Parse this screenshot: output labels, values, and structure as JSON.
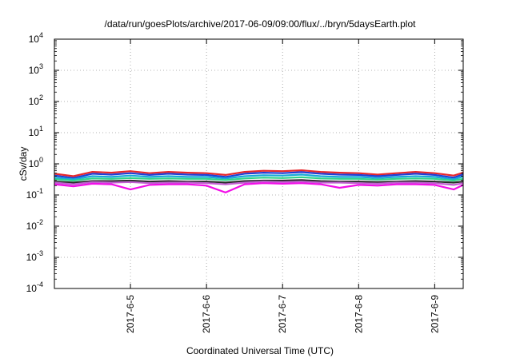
{
  "chart_data": {
    "type": "line",
    "title": "/data/run/goesPlots/archive/2017-06-09/09:00/flux/../bryn/5daysEarth.plot",
    "xlabel": "Coordinated Universal Time (UTC)",
    "ylabel": "cSv/day",
    "yscale": "log",
    "ylim": [
      0.0001,
      10000
    ],
    "xlim": [
      "2017-06-04 00:00",
      "2017-06-09 09:00"
    ],
    "grid": true,
    "legend": "none",
    "y_ticks": [
      {
        "base": "10",
        "exp": "-4",
        "value": 0.0001
      },
      {
        "base": "10",
        "exp": "-3",
        "value": 0.001
      },
      {
        "base": "10",
        "exp": "-2",
        "value": 0.01
      },
      {
        "base": "10",
        "exp": "-1",
        "value": 0.1
      },
      {
        "base": "10",
        "exp": "0",
        "value": 1
      },
      {
        "base": "10",
        "exp": "1",
        "value": 10
      },
      {
        "base": "10",
        "exp": "2",
        "value": 100
      },
      {
        "base": "10",
        "exp": "3",
        "value": 1000
      },
      {
        "base": "10",
        "exp": "4",
        "value": 10000
      }
    ],
    "x_ticks": [
      {
        "label": "2017-6-5",
        "value": "2017-06-05 00:00"
      },
      {
        "label": "2017-6-6",
        "value": "2017-06-06 00:00"
      },
      {
        "label": "2017-6-7",
        "value": "2017-06-07 00:00"
      },
      {
        "label": "2017-6-8",
        "value": "2017-06-08 00:00"
      },
      {
        "label": "2017-6-9",
        "value": "2017-06-09 00:00"
      }
    ],
    "x": [
      "2017-06-04 00:00",
      "2017-06-04 06:00",
      "2017-06-04 12:00",
      "2017-06-04 18:00",
      "2017-06-05 00:00",
      "2017-06-05 06:00",
      "2017-06-05 12:00",
      "2017-06-05 18:00",
      "2017-06-06 00:00",
      "2017-06-06 06:00",
      "2017-06-06 12:00",
      "2017-06-06 18:00",
      "2017-06-07 00:00",
      "2017-06-07 06:00",
      "2017-06-07 12:00",
      "2017-06-07 18:00",
      "2017-06-08 00:00",
      "2017-06-08 06:00",
      "2017-06-08 12:00",
      "2017-06-08 18:00",
      "2017-06-09 00:00",
      "2017-06-09 06:00",
      "2017-06-09 09:00"
    ],
    "series": [
      {
        "color": "#e8262a",
        "values": [
          0.48,
          0.4,
          0.55,
          0.52,
          0.58,
          0.5,
          0.55,
          0.52,
          0.5,
          0.44,
          0.55,
          0.6,
          0.58,
          0.62,
          0.55,
          0.52,
          0.5,
          0.45,
          0.5,
          0.55,
          0.5,
          0.42,
          0.52
        ]
      },
      {
        "color": "#1f3fd6",
        "values": [
          0.42,
          0.35,
          0.48,
          0.45,
          0.5,
          0.44,
          0.48,
          0.45,
          0.44,
          0.38,
          0.48,
          0.52,
          0.5,
          0.54,
          0.48,
          0.45,
          0.44,
          0.4,
          0.44,
          0.48,
          0.44,
          0.36,
          0.46
        ]
      },
      {
        "color": "#18a9d8",
        "values": [
          0.36,
          0.32,
          0.4,
          0.38,
          0.42,
          0.38,
          0.4,
          0.38,
          0.38,
          0.34,
          0.4,
          0.43,
          0.42,
          0.45,
          0.4,
          0.38,
          0.38,
          0.35,
          0.38,
          0.4,
          0.38,
          0.32,
          0.39
        ]
      },
      {
        "color": "#2fd38a",
        "values": [
          0.32,
          0.29,
          0.34,
          0.33,
          0.35,
          0.33,
          0.34,
          0.33,
          0.33,
          0.3,
          0.34,
          0.36,
          0.35,
          0.37,
          0.34,
          0.33,
          0.33,
          0.31,
          0.33,
          0.34,
          0.33,
          0.29,
          0.33
        ]
      },
      {
        "color": "#2a2a2a",
        "values": [
          0.27,
          0.25,
          0.28,
          0.28,
          0.29,
          0.27,
          0.28,
          0.27,
          0.27,
          0.25,
          0.28,
          0.29,
          0.29,
          0.3,
          0.28,
          0.27,
          0.27,
          0.26,
          0.27,
          0.28,
          0.27,
          0.25,
          0.27
        ]
      },
      {
        "color": "#c060d0",
        "values": [
          0.25,
          0.22,
          0.26,
          0.25,
          0.26,
          0.24,
          0.25,
          0.25,
          0.24,
          0.22,
          0.25,
          0.27,
          0.26,
          0.27,
          0.25,
          0.25,
          0.24,
          0.23,
          0.25,
          0.25,
          0.24,
          0.21,
          0.24
        ]
      },
      {
        "color": "#f20ee8",
        "values": [
          0.22,
          0.19,
          0.23,
          0.22,
          0.15,
          0.21,
          0.22,
          0.22,
          0.2,
          0.12,
          0.22,
          0.24,
          0.23,
          0.24,
          0.22,
          0.17,
          0.21,
          0.2,
          0.22,
          0.22,
          0.21,
          0.15,
          0.21
        ]
      }
    ]
  }
}
